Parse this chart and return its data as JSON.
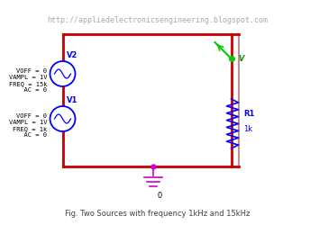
{
  "bg_color": "#ffffff",
  "url_text": "http://appliedelectronicsengineering.blogspot.com",
  "url_color": "#aaaaaa",
  "url_fontsize": 6,
  "caption": "Fig. Two Sources with frequency 1kHz and 15kHz",
  "caption_color": "#404040",
  "caption_fontsize": 6,
  "rect_color": "#c09090",
  "wire_color": "#cc0000",
  "ground_color": "#cc00cc",
  "source_color_fill": "#ffffff",
  "source_color_edge": "#0000ff",
  "source_label_color": "#0000ff",
  "resistor_color": "#0000ff",
  "probe_color": "#00cc00",
  "probe_label_color": "#009900",
  "params_color": "#000000",
  "v2_label": "V2",
  "v1_label": "V1",
  "v2_params": "VOFF = 0\nVAMPL = 1V\nFREQ = 15k\n  AC = 0",
  "v1_params": "VOFF = 0\nVAMPL = 1V\nFREQ = 1k\n  AC = 0",
  "resistor_label": "R1",
  "resistor_value": "1k",
  "probe_label": "V",
  "params_fontsize": 5,
  "label_fontsize": 6
}
